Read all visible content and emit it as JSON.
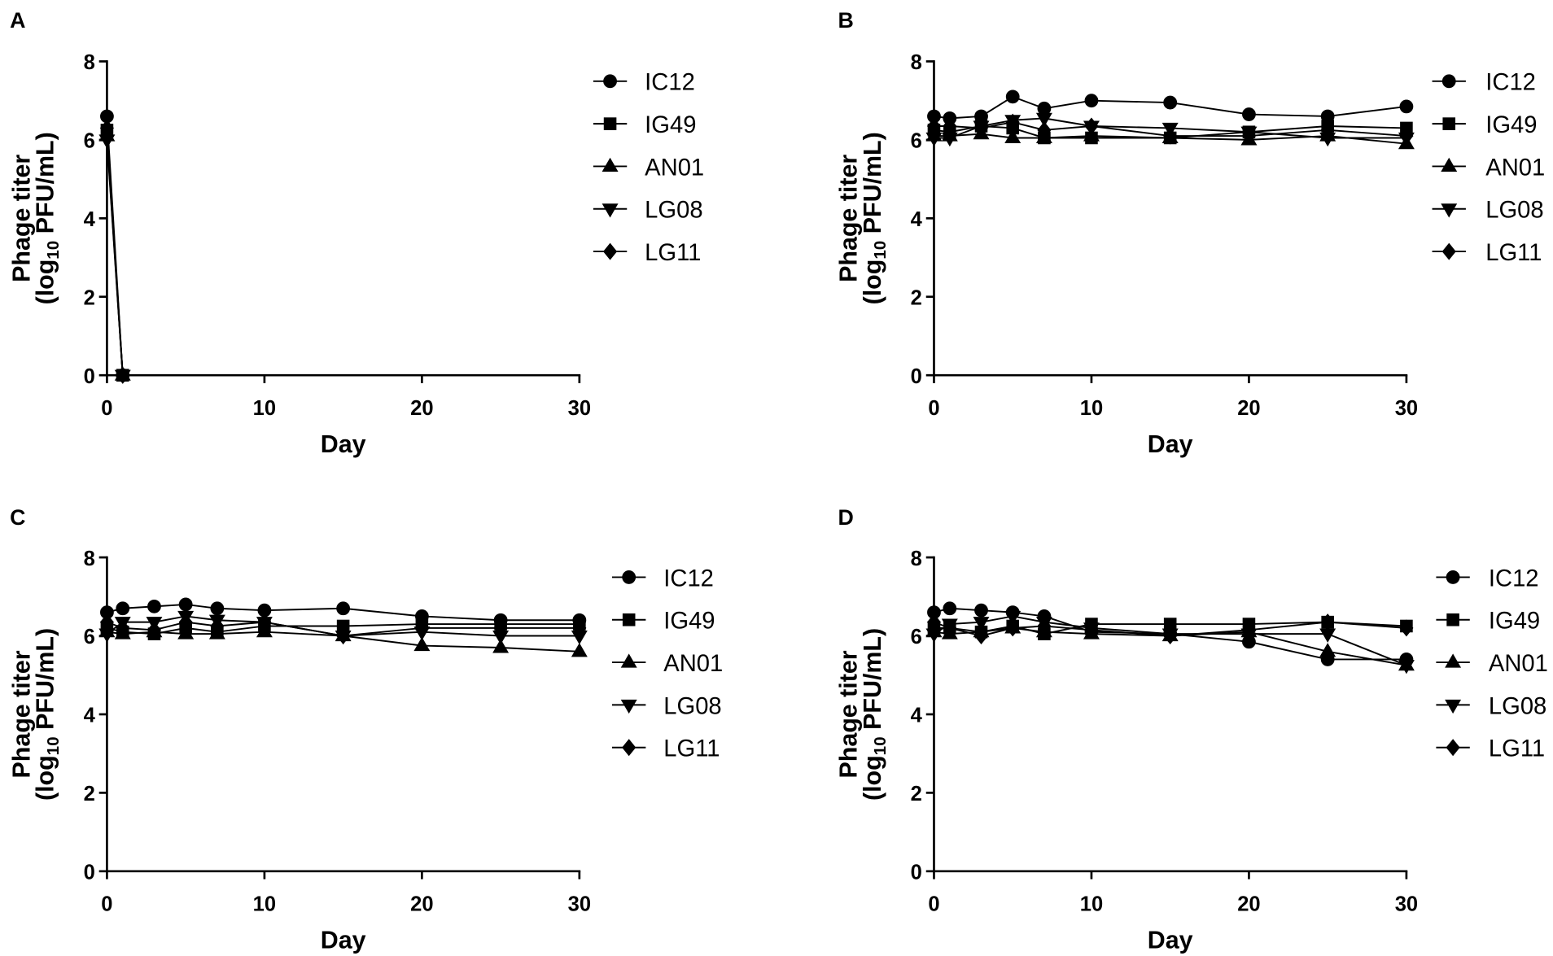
{
  "chart_data": [
    {
      "panel_label": "A",
      "type": "line",
      "xlabel": "Day",
      "ylabel": {
        "line1": "Phage titer",
        "line2_before": "(log",
        "line2_sub": "10",
        "line2_after": " PFU/mL)"
      },
      "xlim": [
        0,
        30
      ],
      "ylim": [
        0,
        8
      ],
      "xticks": [
        0,
        10,
        20,
        30
      ],
      "yticks": [
        0,
        2,
        4,
        6,
        8
      ],
      "legend_position": "right",
      "x": [
        0,
        1
      ],
      "series": [
        {
          "name": "IC12",
          "marker": "circle",
          "values": [
            6.6,
            0
          ]
        },
        {
          "name": "IG49",
          "marker": "square",
          "values": [
            6.25,
            0
          ]
        },
        {
          "name": "AN01",
          "marker": "triangle-up",
          "values": [
            6.1,
            0
          ]
        },
        {
          "name": "LG08",
          "marker": "triangle-down",
          "values": [
            6.0,
            0
          ]
        },
        {
          "name": "LG11",
          "marker": "diamond",
          "values": [
            6.3,
            0
          ]
        }
      ]
    },
    {
      "panel_label": "B",
      "type": "line",
      "xlabel": "Day",
      "ylabel": {
        "line1": "Phage titer",
        "line2_before": "(log",
        "line2_sub": "10",
        "line2_after": " PFU/mL)"
      },
      "xlim": [
        0,
        30
      ],
      "ylim": [
        0,
        8
      ],
      "xticks": [
        0,
        10,
        20,
        30
      ],
      "yticks": [
        0,
        2,
        4,
        6,
        8
      ],
      "legend_position": "right",
      "x": [
        0,
        1,
        3,
        5,
        7,
        10,
        15,
        20,
        25,
        30
      ],
      "series": [
        {
          "name": "IC12",
          "marker": "circle",
          "values": [
            6.6,
            6.55,
            6.6,
            7.1,
            6.8,
            7.0,
            6.95,
            6.65,
            6.6,
            6.85
          ]
        },
        {
          "name": "IG49",
          "marker": "square",
          "values": [
            6.25,
            6.2,
            6.35,
            6.3,
            6.05,
            6.05,
            6.05,
            6.2,
            6.35,
            6.3
          ]
        },
        {
          "name": "AN01",
          "marker": "triangle-up",
          "values": [
            6.1,
            6.1,
            6.15,
            6.05,
            6.05,
            6.1,
            6.05,
            6.0,
            6.1,
            5.9
          ]
        },
        {
          "name": "LG08",
          "marker": "triangle-down",
          "values": [
            6.05,
            6.05,
            6.35,
            6.5,
            6.55,
            6.35,
            6.3,
            6.2,
            6.05,
            6.05
          ]
        },
        {
          "name": "LG11",
          "marker": "diamond",
          "values": [
            6.35,
            6.35,
            6.3,
            6.45,
            6.25,
            6.35,
            6.1,
            6.1,
            6.25,
            6.1
          ]
        }
      ]
    },
    {
      "panel_label": "C",
      "type": "line",
      "xlabel": "Day",
      "ylabel": {
        "line1": "Phage titer",
        "line2_before": "(log",
        "line2_sub": "10",
        "line2_after": " PFU/mL)"
      },
      "xlim": [
        0,
        30
      ],
      "ylim": [
        0,
        8
      ],
      "xticks": [
        0,
        10,
        20,
        30
      ],
      "yticks": [
        0,
        2,
        4,
        6,
        8
      ],
      "legend_position": "right",
      "x": [
        0,
        1,
        3,
        5,
        7,
        10,
        15,
        20,
        25,
        30
      ],
      "series": [
        {
          "name": "IC12",
          "marker": "circle",
          "values": [
            6.6,
            6.7,
            6.75,
            6.8,
            6.7,
            6.65,
            6.7,
            6.5,
            6.4,
            6.4
          ]
        },
        {
          "name": "IG49",
          "marker": "square",
          "values": [
            6.2,
            6.1,
            6.05,
            6.2,
            6.1,
            6.25,
            6.25,
            6.3,
            6.3,
            6.3
          ]
        },
        {
          "name": "AN01",
          "marker": "triangle-up",
          "values": [
            6.1,
            6.05,
            6.1,
            6.05,
            6.05,
            6.1,
            6.0,
            5.75,
            5.7,
            5.6
          ]
        },
        {
          "name": "LG08",
          "marker": "triangle-down",
          "values": [
            6.05,
            6.35,
            6.35,
            6.5,
            6.4,
            6.35,
            6.0,
            6.1,
            6.0,
            6.0
          ]
        },
        {
          "name": "LG11",
          "marker": "diamond",
          "values": [
            6.35,
            6.2,
            6.15,
            6.35,
            6.25,
            6.35,
            6.0,
            6.2,
            6.2,
            6.2
          ]
        }
      ]
    },
    {
      "panel_label": "D",
      "type": "line",
      "xlabel": "Day",
      "ylabel": {
        "line1": "Phage titer",
        "line2_before": "(log",
        "line2_sub": "10",
        "line2_after": " PFU/mL)"
      },
      "xlim": [
        0,
        30
      ],
      "ylim": [
        0,
        8
      ],
      "xticks": [
        0,
        10,
        20,
        30
      ],
      "yticks": [
        0,
        2,
        4,
        6,
        8
      ],
      "legend_position": "right",
      "x": [
        0,
        1,
        3,
        5,
        7,
        10,
        15,
        20,
        25,
        30
      ],
      "series": [
        {
          "name": "IC12",
          "marker": "circle",
          "values": [
            6.6,
            6.7,
            6.65,
            6.6,
            6.5,
            6.1,
            6.05,
            5.85,
            5.4,
            5.4
          ]
        },
        {
          "name": "IG49",
          "marker": "square",
          "values": [
            6.2,
            6.2,
            6.1,
            6.25,
            6.05,
            6.3,
            6.3,
            6.3,
            6.35,
            6.25
          ]
        },
        {
          "name": "AN01",
          "marker": "triangle-up",
          "values": [
            6.1,
            6.05,
            6.1,
            6.2,
            6.1,
            6.05,
            6.0,
            6.1,
            5.6,
            5.25
          ]
        },
        {
          "name": "LG08",
          "marker": "triangle-down",
          "values": [
            6.05,
            6.3,
            6.35,
            6.5,
            6.35,
            6.2,
            6.05,
            6.05,
            6.05,
            5.25
          ]
        },
        {
          "name": "LG11",
          "marker": "diamond",
          "values": [
            6.35,
            6.2,
            6.0,
            6.2,
            6.25,
            6.15,
            6.0,
            6.15,
            6.35,
            6.2
          ]
        }
      ]
    }
  ]
}
